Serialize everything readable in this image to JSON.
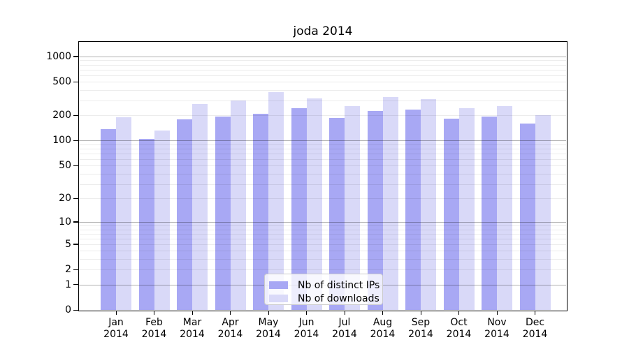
{
  "title": "joda 2014",
  "chart_data": {
    "type": "bar",
    "title": "joda 2014",
    "year": "2014",
    "months": [
      "Jan",
      "Feb",
      "Mar",
      "Apr",
      "May",
      "Jun",
      "Jul",
      "Aug",
      "Sep",
      "Oct",
      "Nov",
      "Dec"
    ],
    "categories": [
      "Jan 2014",
      "Feb 2014",
      "Mar 2014",
      "Apr 2014",
      "May 2014",
      "Jun 2014",
      "Jul 2014",
      "Aug 2014",
      "Sep 2014",
      "Oct 2014",
      "Nov 2014",
      "Dec 2014"
    ],
    "series": [
      {
        "name": "Nb of distinct IPs",
        "color": "#a8a8f4",
        "values": [
          138,
          104,
          180,
          193,
          210,
          243,
          187,
          225,
          233,
          184,
          193,
          160
        ]
      },
      {
        "name": "Nb of downloads",
        "color": "#d9d9f8",
        "values": [
          190,
          133,
          272,
          300,
          378,
          317,
          258,
          332,
          312,
          243,
          258,
          201
        ]
      }
    ],
    "xlabel": "",
    "ylabel": "",
    "yscale": "log1p",
    "ylim": [
      0,
      1500
    ],
    "ytick_labels": [
      "1000",
      "500",
      "200",
      "100",
      "50",
      "20",
      "10",
      "5",
      "2",
      "1",
      "0"
    ],
    "ytick_values": [
      1000,
      500,
      200,
      100,
      50,
      20,
      10,
      5,
      2,
      1,
      0
    ],
    "major_gridline_values": [
      1,
      10,
      100,
      1000
    ],
    "minor_gridline_values": [
      2,
      3,
      4,
      5,
      6,
      7,
      8,
      9,
      20,
      30,
      40,
      50,
      60,
      70,
      80,
      90,
      200,
      300,
      400,
      500,
      600,
      700,
      800,
      900
    ],
    "grid": "on",
    "legend": {
      "position": "lower center",
      "entries": [
        "Nb of distinct IPs",
        "Nb of downloads"
      ]
    }
  },
  "colors": {
    "distinct_ips_bar": "#a8a8f4",
    "downloads_bar": "#d9d9f8",
    "major_grid": "#b3b3b3",
    "minor_grid": "#ebebeb",
    "spine": "#000000",
    "legend_border": "#cccccc",
    "background": "#ffffff"
  }
}
